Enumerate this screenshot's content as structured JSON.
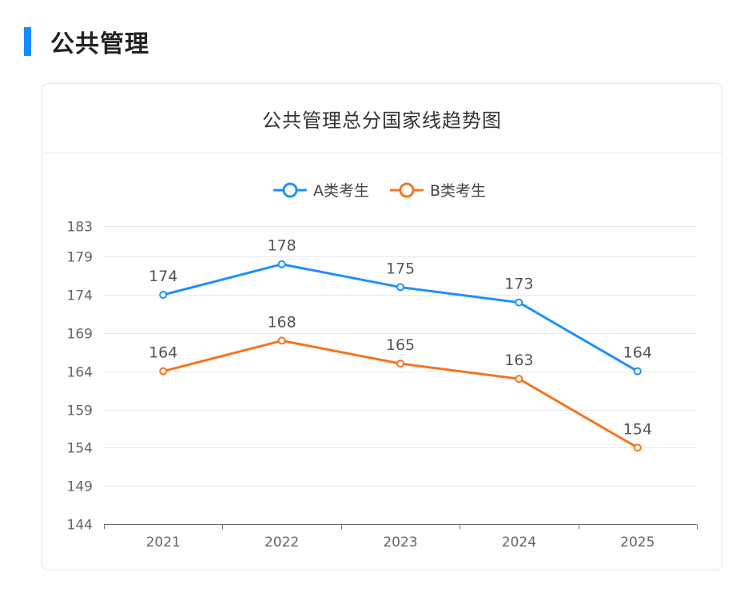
{
  "section": {
    "title": "公共管理"
  },
  "card": {
    "title": "公共管理总分国家线趋势图"
  },
  "colors": {
    "accent": "#1a8cff",
    "series_a": "#1e90ff",
    "series_b": "#f5741f",
    "grid": "#e3e8f5",
    "axis": "#6e6e6e",
    "tick_text": "#666666",
    "label_text": "#555555"
  },
  "chart_data": {
    "type": "line",
    "categories": [
      "2021",
      "2022",
      "2023",
      "2024",
      "2025"
    ],
    "series": [
      {
        "name": "A类考生",
        "values": [
          174,
          178,
          175,
          173,
          164
        ]
      },
      {
        "name": "B类考生",
        "values": [
          164,
          168,
          165,
          163,
          154
        ]
      }
    ],
    "yticks": [
      144,
      149,
      154,
      159,
      164,
      169,
      174,
      179,
      183
    ],
    "ylim": [
      144,
      183
    ],
    "grid": true,
    "legend": "top-center",
    "data_labels": true
  }
}
